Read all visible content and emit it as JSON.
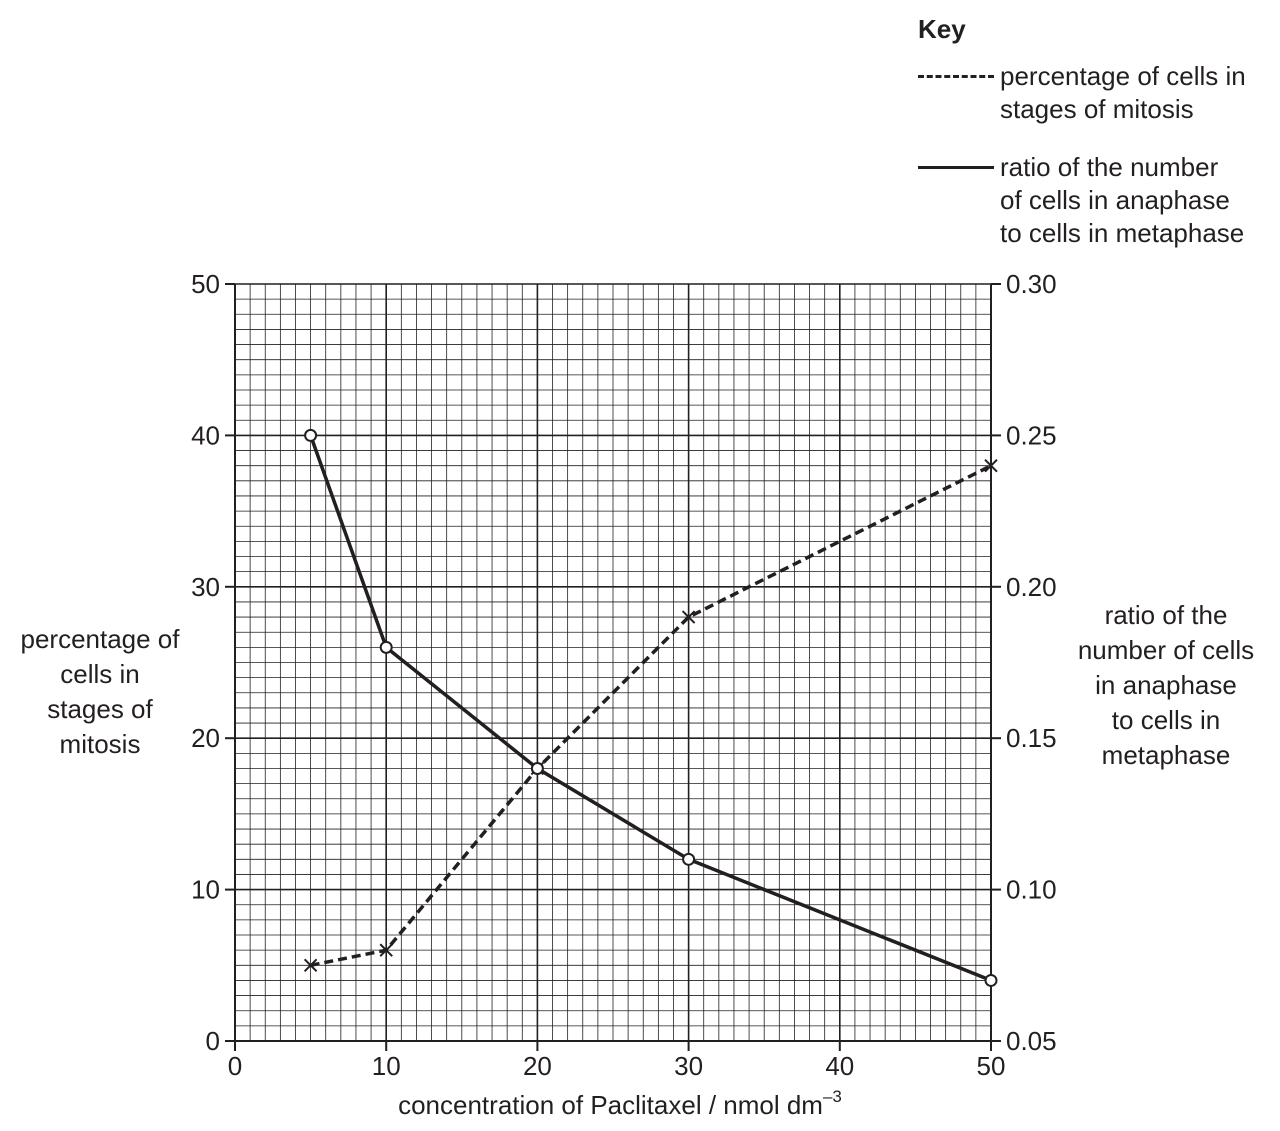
{
  "chart_data": {
    "type": "line",
    "key": {
      "title": "Key",
      "entries": [
        {
          "label": "percentage of cells in\nstages of mitosis",
          "style": "dashed",
          "marker": "cross"
        },
        {
          "label": "ratio of the number\nof  cells in anaphase\nto cells in metaphase",
          "style": "solid",
          "marker": "circle"
        }
      ]
    },
    "xlabel": "concentration of Paclitaxel / nmol dm",
    "xlabel_sup": "–3",
    "ylabel_left": "percentage of\ncells in\nstages of\nmitosis",
    "ylabel_right": "ratio of the\nnumber of cells\nin anaphase\nto cells in\nmetaphase",
    "xlim": [
      0,
      50
    ],
    "ylim_left": [
      0,
      50
    ],
    "ylim_right": [
      0.05,
      0.3
    ],
    "x_ticks": [
      "0",
      "10",
      "20",
      "30",
      "40",
      "50"
    ],
    "y_left_ticks": [
      "0",
      "10",
      "20",
      "30",
      "40",
      "50"
    ],
    "y_right_ticks": [
      "0.05",
      "0.10",
      "0.15",
      "0.20",
      "0.25",
      "0.30"
    ],
    "grid": true,
    "series": [
      {
        "axis": "left",
        "x": [
          5,
          10,
          20,
          30,
          50
        ],
        "values": [
          5,
          6,
          18,
          28,
          38
        ]
      },
      {
        "axis": "right",
        "x": [
          5,
          10,
          20,
          30,
          50
        ],
        "values": [
          0.25,
          0.18,
          0.14,
          0.11,
          0.07
        ]
      }
    ],
    "colors": {
      "ink": "#231f20"
    }
  }
}
